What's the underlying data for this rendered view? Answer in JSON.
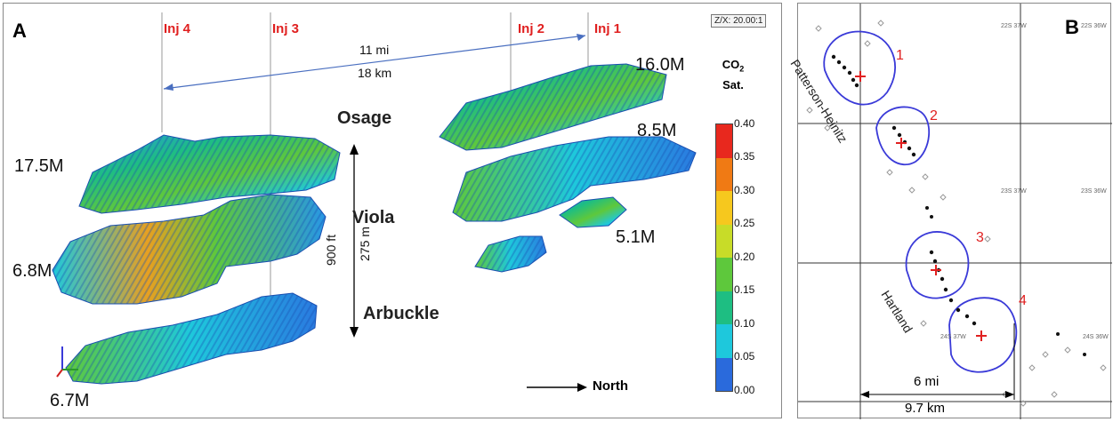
{
  "panel_a": {
    "letter": "A",
    "scale_text": "Z/X: 20.00:1",
    "injectors": [
      "Inj 4",
      "Inj 3",
      "Inj 2",
      "Inj 1"
    ],
    "distance": {
      "miles": "11 mi",
      "km": "18 km"
    },
    "volumes_left": [
      "17.5M",
      "6.8M",
      "6.7M"
    ],
    "volumes_right": [
      "16.0M",
      "8.5M",
      "5.1M"
    ],
    "formations": [
      "Osage",
      "Viola",
      "Arbuckle"
    ],
    "thickness": {
      "feet": "900 ft",
      "meters": "275 m"
    },
    "direction_label": "North",
    "colorbar": {
      "title_line1": "CO",
      "title_sub": "2",
      "title_line2": "Sat.",
      "ticks": [
        "0.40",
        "0.35",
        "0.30",
        "0.25",
        "0.20",
        "0.15",
        "0.10",
        "0.05",
        "0.00"
      ],
      "colors": [
        "#e8281e",
        "#f07a14",
        "#f6c81e",
        "#c8dc28",
        "#5ec83c",
        "#1ebe82",
        "#1ec8dc",
        "#2896e6",
        "#1e5ad2"
      ]
    }
  },
  "panel_b": {
    "letter": "B",
    "wells": [
      "1",
      "2",
      "3",
      "4"
    ],
    "field_names": [
      "Patterson-Heinitz",
      "Hartland"
    ],
    "scale": {
      "miles": "6 mi",
      "km": "9.7 km"
    },
    "grid_labels": [
      "22S 37W",
      "22S 36W",
      "23S 37W",
      "23S 36W",
      "24S 37W",
      "24S 36W"
    ],
    "colors": {
      "outline": "#3a3ad8",
      "injector": "#e02020"
    }
  }
}
